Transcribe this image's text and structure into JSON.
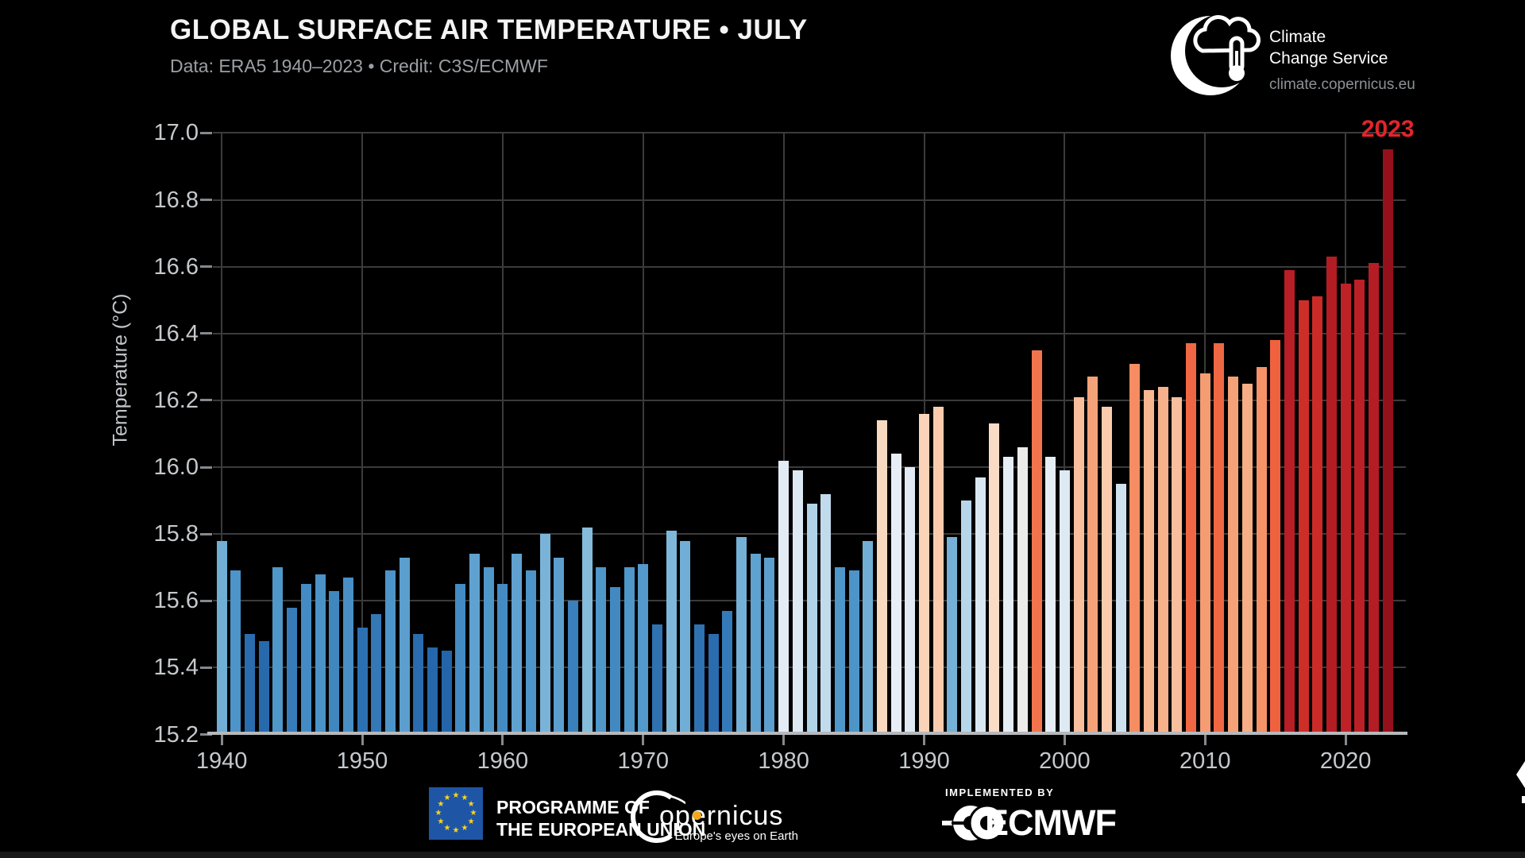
{
  "header": {
    "title": "GLOBAL SURFACE AIR TEMPERATURE • JULY",
    "subtitle": "Data: ERA5 1940–2023 • Credit: C3S/ECMWF"
  },
  "logo": {
    "line1": "Climate",
    "line2": "Change Service",
    "url": "climate.copernicus.eu"
  },
  "chart_data": {
    "type": "bar",
    "title": "GLOBAL SURFACE AIR TEMPERATURE • JULY",
    "xlabel": "",
    "ylabel": "Temperature (°C)",
    "ylim": [
      15.2,
      17.0
    ],
    "yticks": [
      15.2,
      15.4,
      15.6,
      15.8,
      16.0,
      16.2,
      16.4,
      16.6,
      16.8,
      17.0
    ],
    "xticks": [
      1940,
      1950,
      1960,
      1970,
      1980,
      1990,
      2000,
      2010,
      2020
    ],
    "grid": true,
    "legend": "none",
    "unit": "°C",
    "x": [
      1940,
      1941,
      1942,
      1943,
      1944,
      1945,
      1946,
      1947,
      1948,
      1949,
      1950,
      1951,
      1952,
      1953,
      1954,
      1955,
      1956,
      1957,
      1958,
      1959,
      1960,
      1961,
      1962,
      1963,
      1964,
      1965,
      1966,
      1967,
      1968,
      1969,
      1970,
      1971,
      1972,
      1973,
      1974,
      1975,
      1976,
      1977,
      1978,
      1979,
      1980,
      1981,
      1982,
      1983,
      1984,
      1985,
      1986,
      1987,
      1988,
      1989,
      1990,
      1991,
      1992,
      1993,
      1994,
      1995,
      1996,
      1997,
      1998,
      1999,
      2000,
      2001,
      2002,
      2003,
      2004,
      2005,
      2006,
      2007,
      2008,
      2009,
      2010,
      2011,
      2012,
      2013,
      2014,
      2015,
      2016,
      2017,
      2018,
      2019,
      2020,
      2021,
      2022,
      2023
    ],
    "values": [
      15.78,
      15.69,
      15.5,
      15.48,
      15.7,
      15.58,
      15.65,
      15.68,
      15.63,
      15.67,
      15.52,
      15.56,
      15.69,
      15.73,
      15.5,
      15.46,
      15.45,
      15.65,
      15.74,
      15.7,
      15.65,
      15.74,
      15.69,
      15.8,
      15.73,
      15.6,
      15.82,
      15.7,
      15.64,
      15.7,
      15.71,
      15.53,
      15.81,
      15.78,
      15.53,
      15.5,
      15.57,
      15.79,
      15.74,
      15.73,
      16.02,
      15.99,
      15.89,
      15.92,
      15.7,
      15.69,
      15.78,
      16.14,
      16.04,
      16.0,
      16.16,
      16.18,
      15.79,
      15.9,
      15.97,
      16.13,
      16.03,
      16.06,
      16.35,
      16.03,
      15.99,
      16.21,
      16.27,
      16.18,
      15.95,
      16.31,
      16.23,
      16.24,
      16.21,
      16.37,
      16.28,
      16.37,
      16.27,
      16.25,
      16.3,
      16.38,
      16.59,
      16.5,
      16.51,
      16.63,
      16.55,
      16.56,
      16.61,
      16.95
    ],
    "annotations": [
      {
        "text": "2023",
        "year": 2023,
        "color": "#e2252a"
      }
    ],
    "palette_stops": [
      [
        15.4,
        "#1e5fa5"
      ],
      [
        15.5,
        "#2a6cae"
      ],
      [
        15.6,
        "#3a80bc"
      ],
      [
        15.7,
        "#4f96c9"
      ],
      [
        15.8,
        "#79b4d8"
      ],
      [
        15.9,
        "#b7d6e9"
      ],
      [
        15.97,
        "#d9e7f2"
      ],
      [
        16.04,
        "#e7eef5"
      ],
      [
        16.1,
        "#f9e4d3"
      ],
      [
        16.16,
        "#fbd3b8"
      ],
      [
        16.24,
        "#f8b28b"
      ],
      [
        16.32,
        "#f4875c"
      ],
      [
        16.4,
        "#ee5434"
      ],
      [
        16.48,
        "#d43228"
      ],
      [
        16.56,
        "#bb2026"
      ],
      [
        16.7,
        "#ab1820"
      ],
      [
        17.0,
        "#8f0f1a"
      ]
    ],
    "colors": {
      "background": "#000000",
      "gridline": "#3b3b3b",
      "axis_line": "#b6b9bc",
      "tick_label": "#c5c9cc",
      "annotation_red": "#e2252a"
    }
  },
  "footer": {
    "eu_line1": "PROGRAMME OF",
    "eu_line2": "THE EUROPEAN UNION",
    "copernicus_text": "opernicus",
    "copernicus_tagline": "Europe's eyes on Earth",
    "implemented_by": "IMPLEMENTED BY",
    "ecmwf_label": "ECMWF"
  }
}
